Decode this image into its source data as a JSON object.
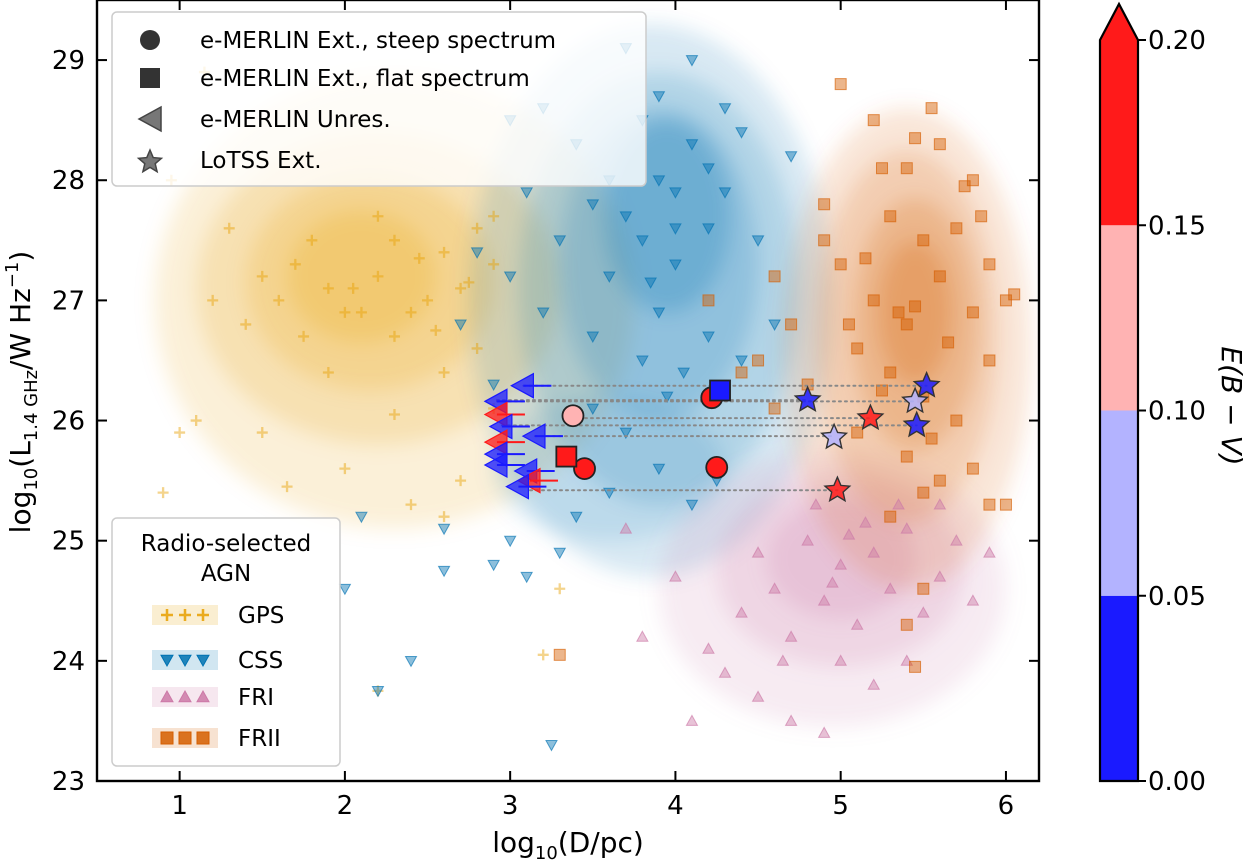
{
  "chart_data": {
    "type": "scatter",
    "xlabel_prefix": "log",
    "xlabel_sub": "10",
    "xlabel_body": "(D/pc)",
    "ylabel_prefix": "log",
    "ylabel_sub": "10",
    "ylabel_body_open": "(L",
    "ylabel_body_sub": "1.4 GHz",
    "ylabel_body_close": "/W Hz",
    "ylabel_sup": "−1",
    "ylabel_end": ")",
    "xlim": [
      0.5,
      6.2
    ],
    "ylim": [
      23,
      29.5
    ],
    "xticks": [
      "1",
      "2",
      "3",
      "4",
      "5",
      "6"
    ],
    "yticks": [
      "23",
      "24",
      "25",
      "26",
      "27",
      "28",
      "29"
    ],
    "colorbar": {
      "label": "E(B − V)",
      "ticks": [
        "0.00",
        "0.05",
        "0.10",
        "0.15",
        "0.20"
      ],
      "bins": [
        {
          "range": [
            0.0,
            0.05
          ],
          "color": "#1a1aff"
        },
        {
          "range": [
            0.05,
            0.1
          ],
          "color": "#b3b3ff"
        },
        {
          "range": [
            0.1,
            0.15
          ],
          "color": "#ffb3b3"
        },
        {
          "range": [
            0.15,
            0.2
          ],
          "color": "#ff1a1a"
        }
      ],
      "extend": "max"
    },
    "legend_markers": {
      "items": [
        {
          "label": "e-MERLIN Ext., steep spectrum",
          "marker": "circle"
        },
        {
          "label": "e-MERLIN Ext., flat spectrum",
          "marker": "square"
        },
        {
          "label": "e-MERLIN Unres.",
          "marker": "left-triangle"
        },
        {
          "label": "LoTSS Ext.",
          "marker": "star"
        }
      ],
      "position": "upper-left"
    },
    "legend_agn": {
      "title_line1": "Radio-selected",
      "title_line2": "AGN",
      "items": [
        {
          "label": "GPS",
          "color": "#e69f00",
          "marker": "plus"
        },
        {
          "label": "CSS",
          "color": "#0072b2",
          "marker": "down-triangle"
        },
        {
          "label": "FRI",
          "color": "#cc79a7",
          "marker": "up-triangle"
        },
        {
          "label": "FRII",
          "color": "#d55e00",
          "marker": "square"
        }
      ],
      "position": "lower-left"
    },
    "populations": [
      {
        "name": "GPS",
        "color": "#e69f00",
        "marker": "plus",
        "points": [
          [
            1.2,
            27.0
          ],
          [
            1.4,
            26.8
          ],
          [
            1.5,
            27.2
          ],
          [
            1.7,
            27.3
          ],
          [
            1.9,
            27.1
          ],
          [
            2.0,
            26.9
          ],
          [
            2.2,
            27.2
          ],
          [
            2.3,
            27.5
          ],
          [
            2.4,
            26.9
          ],
          [
            2.6,
            27.4
          ],
          [
            2.8,
            27.6
          ],
          [
            2.9,
            27.3
          ],
          [
            2.5,
            27.0
          ],
          [
            2.3,
            26.7
          ],
          [
            2.1,
            26.9
          ],
          [
            1.8,
            27.5
          ],
          [
            1.6,
            27.0
          ],
          [
            2.7,
            27.1
          ],
          [
            2.9,
            27.7
          ],
          [
            2.2,
            27.7
          ],
          [
            1.3,
            27.6
          ],
          [
            2.8,
            26.6
          ],
          [
            2.6,
            26.4
          ],
          [
            1.1,
            26.0
          ],
          [
            1.5,
            25.9
          ],
          [
            2.0,
            25.6
          ],
          [
            2.4,
            25.3
          ],
          [
            0.9,
            25.4
          ],
          [
            1.0,
            25.9
          ],
          [
            2.9,
            26.1
          ],
          [
            1.9,
            26.4
          ],
          [
            2.6,
            25.2
          ],
          [
            0.95,
            28.0
          ],
          [
            1.15,
            28.9
          ],
          [
            3.3,
            24.6
          ],
          [
            3.2,
            24.05
          ],
          [
            2.2,
            23.75
          ],
          [
            1.65,
            25.45
          ],
          [
            2.3,
            26.05
          ],
          [
            2.7,
            25.5
          ],
          [
            1.75,
            26.7
          ],
          [
            2.05,
            27.1
          ],
          [
            2.45,
            27.35
          ],
          [
            2.75,
            27.15
          ],
          [
            2.55,
            26.75
          ]
        ]
      },
      {
        "name": "CSS",
        "color": "#0072b2",
        "marker": "down-triangle",
        "points": [
          [
            3.8,
            28.5
          ],
          [
            3.9,
            28.0
          ],
          [
            4.0,
            27.9
          ],
          [
            4.1,
            28.3
          ],
          [
            4.2,
            28.1
          ],
          [
            3.7,
            27.7
          ],
          [
            3.6,
            28.0
          ],
          [
            4.3,
            27.9
          ],
          [
            3.5,
            27.8
          ],
          [
            3.8,
            27.5
          ],
          [
            4.0,
            27.3
          ],
          [
            4.2,
            27.6
          ],
          [
            4.4,
            28.4
          ],
          [
            3.9,
            28.7
          ],
          [
            4.1,
            29.0
          ],
          [
            3.7,
            29.1
          ],
          [
            3.4,
            28.3
          ],
          [
            3.2,
            28.6
          ],
          [
            3.0,
            28.5
          ],
          [
            3.1,
            27.9
          ],
          [
            3.3,
            27.5
          ],
          [
            3.6,
            27.2
          ],
          [
            3.9,
            26.9
          ],
          [
            4.2,
            26.7
          ],
          [
            4.4,
            26.5
          ],
          [
            4.6,
            26.8
          ],
          [
            4.5,
            27.5
          ],
          [
            4.3,
            28.6
          ],
          [
            4.7,
            28.2
          ],
          [
            3.8,
            26.5
          ],
          [
            3.5,
            26.7
          ],
          [
            3.2,
            26.9
          ],
          [
            3.0,
            27.2
          ],
          [
            2.8,
            27.4
          ],
          [
            2.7,
            26.8
          ],
          [
            2.9,
            26.3
          ],
          [
            3.5,
            26.1
          ],
          [
            3.7,
            25.9
          ],
          [
            3.9,
            25.6
          ],
          [
            4.1,
            25.3
          ],
          [
            3.6,
            25.4
          ],
          [
            3.4,
            25.2
          ],
          [
            3.3,
            24.9
          ],
          [
            3.0,
            25.0
          ],
          [
            2.6,
            25.1
          ],
          [
            2.9,
            24.8
          ],
          [
            2.4,
            24.0
          ],
          [
            2.0,
            24.6
          ],
          [
            3.1,
            24.7
          ],
          [
            2.1,
            25.2
          ],
          [
            2.2,
            23.75
          ],
          [
            3.25,
            23.3
          ],
          [
            4.25,
            25.5
          ],
          [
            2.6,
            24.75
          ],
          [
            4.0,
            27.6
          ],
          [
            3.85,
            27.15
          ],
          [
            4.05,
            26.4
          ],
          [
            3.95,
            26.2
          ]
        ]
      },
      {
        "name": "FRI",
        "color": "#cc79a7",
        "marker": "up-triangle",
        "points": [
          [
            4.8,
            25.0
          ],
          [
            5.0,
            24.8
          ],
          [
            5.2,
            24.9
          ],
          [
            5.4,
            25.1
          ],
          [
            5.6,
            24.7
          ],
          [
            4.9,
            24.5
          ],
          [
            5.1,
            24.3
          ],
          [
            5.3,
            24.6
          ],
          [
            5.5,
            24.4
          ],
          [
            4.7,
            24.2
          ],
          [
            5.0,
            24.0
          ],
          [
            5.2,
            23.8
          ],
          [
            4.6,
            24.6
          ],
          [
            4.5,
            24.9
          ],
          [
            5.7,
            25.0
          ],
          [
            5.8,
            24.5
          ],
          [
            4.4,
            24.4
          ],
          [
            4.3,
            23.9
          ],
          [
            4.5,
            23.7
          ],
          [
            4.7,
            23.5
          ],
          [
            4.9,
            23.4
          ],
          [
            4.2,
            24.1
          ],
          [
            5.9,
            24.9
          ],
          [
            4.85,
            25.3
          ],
          [
            5.15,
            25.15
          ],
          [
            3.7,
            25.1
          ],
          [
            4.0,
            24.7
          ],
          [
            4.1,
            23.5
          ],
          [
            5.4,
            24.0
          ],
          [
            5.6,
            25.3
          ],
          [
            3.8,
            24.2
          ],
          [
            4.95,
            24.65
          ],
          [
            5.05,
            25.05
          ],
          [
            5.35,
            25.3
          ],
          [
            4.65,
            24.0
          ]
        ]
      },
      {
        "name": "FRII",
        "color": "#d55e00",
        "marker": "square",
        "points": [
          [
            5.2,
            27.0
          ],
          [
            5.4,
            26.8
          ],
          [
            5.6,
            27.2
          ],
          [
            5.8,
            26.9
          ],
          [
            5.5,
            27.5
          ],
          [
            5.3,
            27.7
          ],
          [
            5.7,
            27.6
          ],
          [
            5.9,
            27.3
          ],
          [
            5.1,
            26.6
          ],
          [
            5.3,
            26.4
          ],
          [
            5.5,
            26.2
          ],
          [
            5.7,
            26.0
          ],
          [
            5.9,
            26.5
          ],
          [
            5.0,
            27.3
          ],
          [
            4.9,
            27.8
          ],
          [
            5.4,
            28.1
          ],
          [
            5.6,
            28.3
          ],
          [
            5.2,
            28.5
          ],
          [
            5.0,
            28.8
          ],
          [
            5.8,
            28.0
          ],
          [
            6.0,
            27.0
          ],
          [
            6.05,
            27.05
          ],
          [
            4.8,
            26.3
          ],
          [
            4.7,
            26.8
          ],
          [
            5.1,
            25.9
          ],
          [
            5.4,
            25.7
          ],
          [
            5.6,
            25.5
          ],
          [
            5.8,
            25.6
          ],
          [
            5.9,
            25.3
          ],
          [
            5.3,
            25.2
          ],
          [
            5.5,
            25.4
          ],
          [
            6.0,
            25.3
          ],
          [
            4.6,
            27.2
          ],
          [
            4.9,
            27.5
          ],
          [
            5.75,
            27.95
          ],
          [
            5.15,
            27.35
          ],
          [
            5.45,
            26.95
          ],
          [
            5.65,
            26.65
          ],
          [
            5.25,
            26.25
          ],
          [
            5.55,
            25.85
          ],
          [
            5.35,
            26.9
          ],
          [
            5.05,
            26.8
          ],
          [
            5.85,
            27.7
          ],
          [
            4.5,
            26.5
          ],
          [
            4.6,
            26.1
          ],
          [
            4.4,
            26.4
          ],
          [
            4.2,
            27.0
          ],
          [
            5.5,
            24.6
          ],
          [
            5.4,
            24.3
          ],
          [
            5.45,
            23.95
          ],
          [
            3.3,
            24.05
          ],
          [
            5.45,
            28.35
          ],
          [
            5.55,
            28.6
          ],
          [
            5.25,
            28.1
          ]
        ]
      }
    ],
    "contour_levels": 5,
    "sources": [
      {
        "marker": "circle",
        "x": 3.38,
        "y": 26.04,
        "ebv": 0.12
      },
      {
        "marker": "circle",
        "x": 3.45,
        "y": 25.6,
        "ebv": 0.17
      },
      {
        "marker": "circle",
        "x": 4.22,
        "y": 26.19,
        "ebv": 0.17
      },
      {
        "marker": "circle",
        "x": 4.25,
        "y": 25.61,
        "ebv": 0.17
      },
      {
        "marker": "square",
        "x": 3.34,
        "y": 25.7,
        "ebv": 0.17
      },
      {
        "marker": "square",
        "x": 4.27,
        "y": 26.25,
        "ebv": 0.02
      },
      {
        "marker": "left-triangle",
        "x": 3.08,
        "y": 26.29,
        "ebv": 0.02
      },
      {
        "marker": "left-triangle",
        "x": 2.92,
        "y": 26.16,
        "ebv": 0.02
      },
      {
        "marker": "left-triangle",
        "x": 2.92,
        "y": 26.05,
        "ebv": 0.17
      },
      {
        "marker": "left-triangle",
        "x": 2.95,
        "y": 25.95,
        "ebv": 0.02
      },
      {
        "marker": "left-triangle",
        "x": 3.15,
        "y": 25.87,
        "ebv": 0.02
      },
      {
        "marker": "left-triangle",
        "x": 2.92,
        "y": 25.82,
        "ebv": 0.17
      },
      {
        "marker": "left-triangle",
        "x": 2.92,
        "y": 25.72,
        "ebv": 0.02
      },
      {
        "marker": "left-triangle",
        "x": 2.92,
        "y": 25.63,
        "ebv": 0.02
      },
      {
        "marker": "left-triangle",
        "x": 3.1,
        "y": 25.58,
        "ebv": 0.02
      },
      {
        "marker": "left-triangle",
        "x": 3.12,
        "y": 25.5,
        "ebv": 0.17
      },
      {
        "marker": "left-triangle",
        "x": 3.05,
        "y": 25.45,
        "ebv": 0.02
      },
      {
        "marker": "star",
        "x": 5.52,
        "y": 26.29,
        "ebv": 0.02
      },
      {
        "marker": "star",
        "x": 4.8,
        "y": 26.17,
        "ebv": 0.02
      },
      {
        "marker": "star",
        "x": 5.45,
        "y": 26.16,
        "ebv": 0.07
      },
      {
        "marker": "star",
        "x": 5.18,
        "y": 26.02,
        "ebv": 0.17
      },
      {
        "marker": "star",
        "x": 5.46,
        "y": 25.96,
        "ebv": 0.02
      },
      {
        "marker": "star",
        "x": 4.96,
        "y": 25.86,
        "ebv": 0.07
      },
      {
        "marker": "star",
        "x": 4.98,
        "y": 25.42,
        "ebv": 0.17
      }
    ],
    "links": [
      {
        "y": 26.29,
        "x0": 3.08,
        "x1": 5.52
      },
      {
        "y": 26.17,
        "x0": 2.92,
        "x1": 4.8
      },
      {
        "y": 26.16,
        "x0": 2.92,
        "x1": 5.45
      },
      {
        "y": 26.02,
        "x0": 3.38,
        "x1": 5.18
      },
      {
        "y": 25.96,
        "x0": 2.95,
        "x1": 5.46
      },
      {
        "y": 25.87,
        "x0": 3.15,
        "x1": 4.96
      },
      {
        "y": 25.42,
        "x0": 3.12,
        "x1": 4.98
      }
    ]
  }
}
